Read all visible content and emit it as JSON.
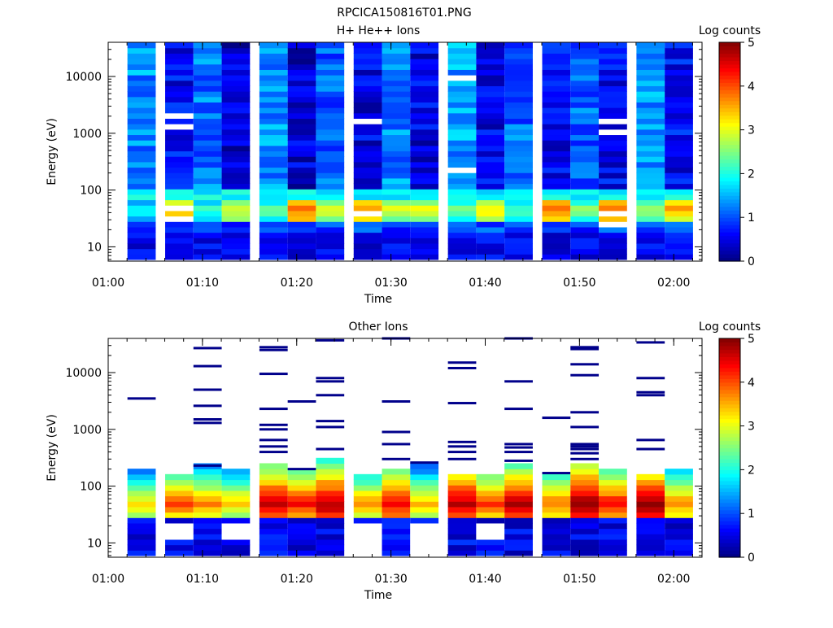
{
  "file_title": "RPCICA150816T01.PNG",
  "chart_data": [
    {
      "type": "heatmap",
      "title": "H+ He++ Ions",
      "xlabel": "Time",
      "ylabel": "Energy (eV)",
      "y_scale": "log",
      "xlim": [
        "01:00",
        "02:03"
      ],
      "ylim": [
        5.6,
        40000
      ],
      "x_ticks": [
        "01:00",
        "01:10",
        "01:20",
        "01:30",
        "01:40",
        "01:50",
        "02:00"
      ],
      "y_ticks": [
        "10",
        "100",
        "1000",
        "10000"
      ],
      "colorbar": {
        "label": "Log counts",
        "range": [
          0,
          5
        ],
        "ticks": [
          "0",
          "1",
          "2",
          "3",
          "4",
          "5"
        ],
        "colormap": "jet"
      },
      "grid": false,
      "time_columns": [
        "01:02",
        "01:06",
        "01:09",
        "01:12",
        "01:16",
        "01:19",
        "01:22",
        "01:26",
        "01:29",
        "01:32",
        "01:36",
        "01:39",
        "01:42",
        "01:46",
        "01:49",
        "01:52",
        "01:56",
        "01:59"
      ],
      "band_energy_range": [
        6,
        40000
      ],
      "profile_gradient": [
        [
          6,
          0.35
        ],
        [
          12,
          0.5
        ],
        [
          20,
          0.8
        ],
        [
          30,
          2.2
        ],
        [
          45,
          3.2
        ],
        [
          60,
          2.3
        ],
        [
          80,
          1.5
        ],
        [
          150,
          0.9
        ],
        [
          40000,
          0.9
        ]
      ],
      "column_peaks": [
        1.9,
        3.4,
        2.1,
        3.0,
        2.3,
        3.8,
        2.9,
        3.7,
        2.9,
        3.0,
        2.4,
        3.2,
        2.2,
        3.8,
        2.5,
        3.8,
        2.7,
        3.5
      ],
      "column_background": [
        1.3,
        0.6,
        1.2,
        0.4,
        1.3,
        0.4,
        1.1,
        0.5,
        1.3,
        0.5,
        1.4,
        0.5,
        1.1,
        0.6,
        1.1,
        0.6,
        1.4,
        0.6
      ],
      "empty_gaps_note": "white horizontal streaks at scattered energies (no counts)",
      "empty_bins": [
        [
          1,
          7
        ],
        [
          1,
          9
        ],
        [
          7,
          8
        ],
        [
          10,
          16
        ],
        [
          15,
          6
        ],
        [
          15,
          8
        ]
      ]
    },
    {
      "type": "heatmap",
      "title": "Other Ions",
      "xlabel": "Time",
      "ylabel": "Energy (eV)",
      "y_scale": "log",
      "xlim": [
        "01:00",
        "02:03"
      ],
      "ylim": [
        5.6,
        40000
      ],
      "x_ticks": [
        "01:00",
        "01:10",
        "01:20",
        "01:30",
        "01:40",
        "01:50",
        "02:00"
      ],
      "y_ticks": [
        "10",
        "100",
        "1000",
        "10000"
      ],
      "colorbar": {
        "label": "Log counts",
        "range": [
          0,
          5
        ],
        "ticks": [
          "0",
          "1",
          "2",
          "3",
          "4",
          "5"
        ],
        "colormap": "jet"
      },
      "grid": false,
      "time_columns": [
        "01:02",
        "01:06",
        "01:09",
        "01:12",
        "01:16",
        "01:19",
        "01:22",
        "01:26",
        "01:29",
        "01:32",
        "01:36",
        "01:39",
        "01:42",
        "01:46",
        "01:49",
        "01:52",
        "01:56",
        "01:59"
      ],
      "column_tops": [
        210,
        170,
        230,
        210,
        280,
        190,
        330,
        180,
        200,
        250,
        170,
        180,
        260,
        180,
        230,
        190,
        180,
        190
      ],
      "column_peaks": [
        3.2,
        3.9,
        3.6,
        3.3,
        4.6,
        4.2,
        4.7,
        3.5,
        4.4,
        3.3,
        4.7,
        4.0,
        4.6,
        3.7,
        4.9,
        4.2,
        4.8,
        3.6
      ],
      "sparse_lines": [
        [
          3500
        ],
        [],
        [
          27000,
          13000,
          5000,
          2600,
          1500,
          1300,
          230
        ],
        [],
        [
          28000,
          25000,
          9500,
          2300,
          1200,
          1000,
          650,
          500,
          400
        ],
        [
          3100,
          200
        ],
        [
          37000,
          8000,
          7000,
          4000,
          1400,
          1100,
          450
        ],
        [],
        [
          40000,
          3100,
          900,
          550,
          300
        ],
        [
          260
        ],
        [
          15000,
          12000,
          2900,
          600,
          500,
          400,
          300
        ],
        [],
        [
          40000,
          7000,
          2300,
          550,
          480,
          400,
          280
        ],
        [
          1600,
          170
        ],
        [
          28000,
          26000,
          14000,
          9000,
          2000,
          1100,
          550,
          500,
          450,
          380,
          300
        ],
        [],
        [
          34000,
          8000,
          4500,
          4000,
          650,
          450
        ],
        []
      ],
      "empty_bins": [
        [
          1,
          1
        ],
        [
          3,
          1
        ],
        [
          5,
          2
        ],
        [
          7,
          0
        ],
        [
          7,
          1
        ],
        [
          9,
          0
        ],
        [
          9,
          1
        ],
        [
          11,
          1
        ]
      ]
    }
  ]
}
